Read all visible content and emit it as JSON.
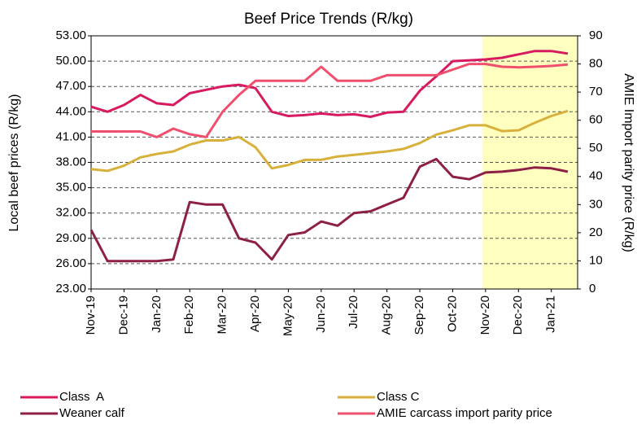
{
  "chart_data": {
    "type": "line",
    "title": "Beef Price Trends (R/kg)",
    "y_label": "Local beef prices (R/kg)",
    "y2_label": "AMIE Import parity price (R/kg)",
    "x": [
      0,
      0.5,
      1,
      1.5,
      2,
      2.5,
      3,
      3.5,
      4,
      4.5,
      5,
      5.5,
      6,
      6.5,
      7,
      7.5,
      8,
      8.5,
      9,
      9.5,
      10,
      10.5,
      11,
      11.5,
      12,
      12.5,
      13,
      13.5,
      14,
      14.5
    ],
    "xlim": [
      0,
      14.8
    ],
    "xticks": [
      {
        "value": 0,
        "label": "Nov-19"
      },
      {
        "value": 1,
        "label": "Dec-19"
      },
      {
        "value": 2,
        "label": "Jan-20"
      },
      {
        "value": 3,
        "label": "Feb-20"
      },
      {
        "value": 4,
        "label": "Mar-20"
      },
      {
        "value": 5,
        "label": "Apr-20"
      },
      {
        "value": 6,
        "label": "May-20"
      },
      {
        "value": 7,
        "label": "Jun-20"
      },
      {
        "value": 8,
        "label": "Jul-20"
      },
      {
        "value": 9,
        "label": "Aug-20"
      },
      {
        "value": 10,
        "label": "Sep-20"
      },
      {
        "value": 11,
        "label": "Oct-20"
      },
      {
        "value": 12,
        "label": "Nov-20"
      },
      {
        "value": 13,
        "label": "Dec-20"
      },
      {
        "value": 14,
        "label": "Jan-21"
      }
    ],
    "ylim": [
      23,
      53
    ],
    "yticks": [
      {
        "value": 23,
        "label": "23.00"
      },
      {
        "value": 26,
        "label": "26.00"
      },
      {
        "value": 29,
        "label": "29.00"
      },
      {
        "value": 32,
        "label": "32.00"
      },
      {
        "value": 35,
        "label": "35.00"
      },
      {
        "value": 38,
        "label": "38.00"
      },
      {
        "value": 41,
        "label": "41.00"
      },
      {
        "value": 44,
        "label": "44.00"
      },
      {
        "value": 47,
        "label": "47.00"
      },
      {
        "value": 50,
        "label": "50.00"
      },
      {
        "value": 53,
        "label": "53.00"
      }
    ],
    "y2lim": [
      0,
      90
    ],
    "y2ticks": [
      0,
      10,
      20,
      30,
      40,
      50,
      60,
      70,
      80,
      90
    ],
    "grid": true,
    "shaded_xrange": [
      11.9,
      14.8
    ],
    "shade_color": "#ffffc0",
    "series": [
      {
        "name": "Class  A",
        "color": "#d81b60",
        "values": [
          44.6,
          44.0,
          44.8,
          46.0,
          45.0,
          44.8,
          46.2,
          46.6,
          47.0,
          47.2,
          46.8,
          44.0,
          43.5,
          43.6,
          43.8,
          43.6,
          43.7,
          43.4,
          43.9,
          44.0,
          46.5,
          48.2,
          50.0,
          50.1,
          50.2,
          50.4,
          50.8,
          51.2,
          51.2,
          50.9
        ]
      },
      {
        "name": "Class C",
        "color": "#d8b13c",
        "values": [
          37.2,
          37.0,
          37.6,
          38.6,
          39.0,
          39.3,
          40.1,
          40.6,
          40.6,
          41.0,
          39.8,
          37.3,
          37.7,
          38.3,
          38.3,
          38.7,
          38.9,
          39.1,
          39.3,
          39.6,
          40.3,
          41.3,
          41.8,
          42.4,
          42.4,
          41.7,
          41.8,
          42.7,
          43.5,
          44.1
        ]
      },
      {
        "name": "Weaner calf",
        "color": "#8e1f45",
        "values": [
          30.0,
          26.3,
          26.3,
          26.3,
          26.3,
          26.5,
          33.3,
          33.0,
          33.0,
          29.0,
          28.5,
          26.5,
          29.4,
          29.7,
          31.0,
          30.5,
          32.0,
          32.2,
          33.0,
          33.8,
          37.5,
          38.4,
          36.3,
          36.0,
          36.8,
          36.9,
          37.1,
          37.4,
          37.3,
          36.9
        ]
      },
      {
        "name": "AMIE carcass import parity price",
        "color": "#f0506e",
        "axis": "y2",
        "values": [
          56,
          56,
          56,
          56,
          54,
          57,
          55,
          54,
          63,
          69,
          74,
          74,
          74,
          74,
          79,
          74,
          74,
          74,
          76,
          76,
          76,
          76,
          78,
          80,
          80,
          79,
          78.8,
          79,
          79.3,
          79.8
        ]
      }
    ]
  }
}
